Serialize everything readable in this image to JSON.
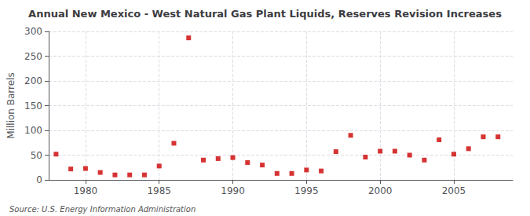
{
  "chart_data": {
    "type": "scatter",
    "title": "Annual New Mexico - West Natural Gas Plant Liquids, Reserves Revision Increases",
    "ylabel": "Million Barrels",
    "annotations": [
      "Source: U.S. Energy Information Administration"
    ],
    "x": [
      1978,
      1979,
      1980,
      1981,
      1982,
      1983,
      1984,
      1985,
      1986,
      1987,
      1988,
      1989,
      1990,
      1991,
      1992,
      1993,
      1994,
      1995,
      1996,
      1997,
      1998,
      1999,
      2000,
      2001,
      2002,
      2003,
      2004,
      2005,
      2006,
      2007,
      2008
    ],
    "values": [
      52,
      22,
      23,
      15,
      10,
      10,
      10,
      28,
      74,
      287,
      40,
      43,
      45,
      35,
      30,
      13,
      13,
      20,
      18,
      57,
      90,
      46,
      58,
      58,
      50,
      40,
      81,
      52,
      63,
      87,
      87
    ],
    "color": "#cc0000",
    "marker": "square",
    "xlim": [
      1977.5,
      2009
    ],
    "xticks": [
      1980,
      1985,
      1990,
      1995,
      2000,
      2005
    ],
    "ylim": [
      0,
      300
    ],
    "yticks": [
      0,
      50,
      100,
      150,
      200,
      250,
      300
    ],
    "grid": true
  }
}
